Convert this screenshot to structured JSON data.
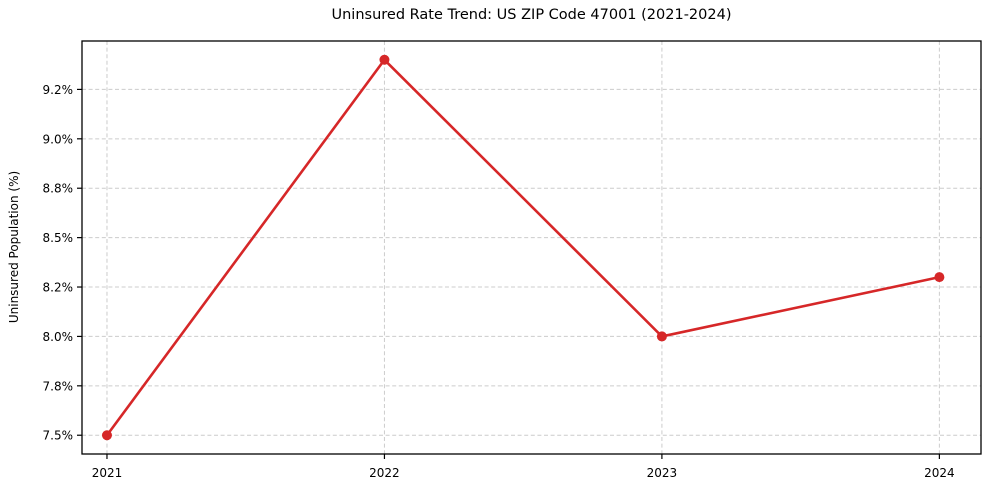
{
  "figure": {
    "background": "#ffffff"
  },
  "chart_data": {
    "type": "line",
    "title": "Uninsured Rate Trend: US ZIP Code 47001 (2021-2024)",
    "xlabel": "",
    "ylabel": "Uninsured Population (%)",
    "x": [
      2021,
      2022,
      2023,
      2024
    ],
    "x_tick_labels": [
      "2021",
      "2022",
      "2023",
      "2024"
    ],
    "values": [
      7.5,
      9.4,
      8.0,
      8.3
    ],
    "y_ticks": [
      7.5,
      7.75,
      8.0,
      8.25,
      8.5,
      8.75,
      9.0,
      9.25
    ],
    "y_tick_labels": [
      "7.5%",
      "7.8%",
      "8.0%",
      "8.2%",
      "8.5%",
      "8.8%",
      "9.0%",
      "9.2%"
    ],
    "xlim": [
      2020.91,
      2024.15
    ],
    "ylim": [
      7.405,
      9.495
    ],
    "legend": "none",
    "grid": {
      "show": true,
      "style": "dashed",
      "color": "#cccccc"
    },
    "line_color": "#d62728",
    "marker": "circle",
    "axis_color": "#000000"
  }
}
